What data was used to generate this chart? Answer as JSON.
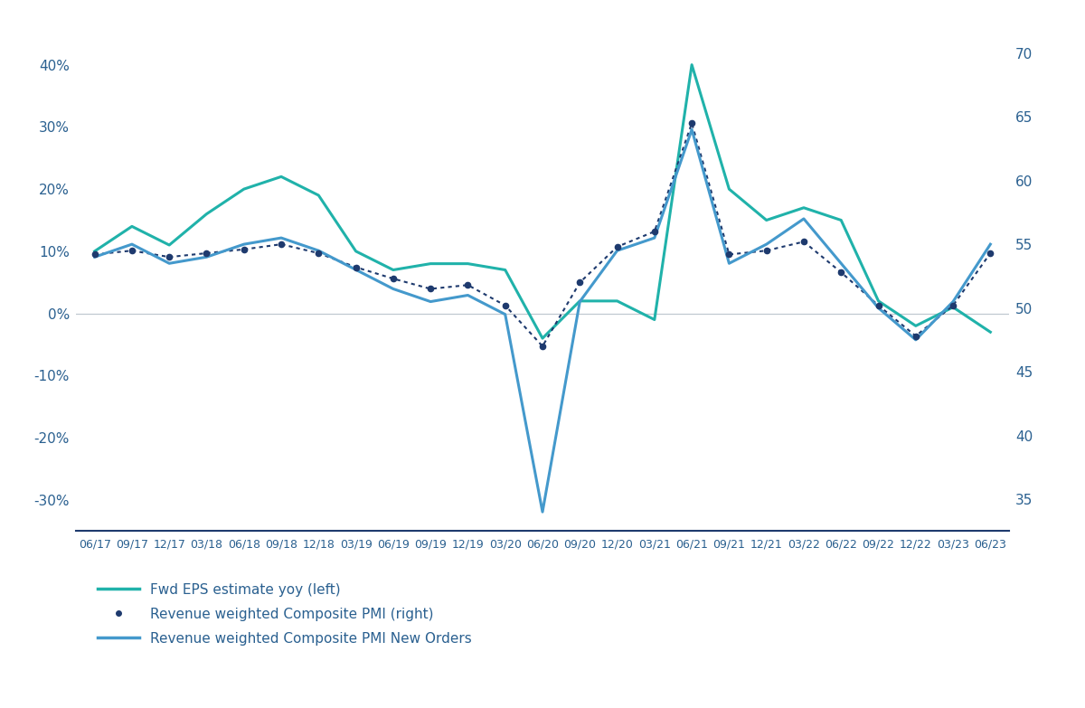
{
  "background_color": "#ffffff",
  "plot_bg_color": "#f0f5f5",
  "text_color": "#1a4a7a",
  "axis_label_color": "#2a6090",
  "x_labels": [
    "06/17",
    "09/17",
    "12/17",
    "03/18",
    "06/18",
    "09/18",
    "12/18",
    "03/19",
    "06/19",
    "09/19",
    "12/19",
    "03/20",
    "06/20",
    "09/20",
    "12/20",
    "03/21",
    "06/21",
    "09/21",
    "12/21",
    "03/22",
    "06/22",
    "09/22",
    "12/22",
    "03/23",
    "06/23"
  ],
  "fwd_eps": [
    10,
    14,
    11,
    16,
    20,
    22,
    19,
    10,
    7,
    8,
    8,
    7,
    -4,
    2,
    2,
    -1,
    40,
    20,
    15,
    17,
    15,
    2,
    -2,
    1,
    -3
  ],
  "composite_pmi": [
    54.2,
    54.5,
    54.0,
    54.3,
    54.6,
    55.0,
    54.3,
    53.2,
    52.3,
    51.5,
    51.8,
    50.2,
    47.0,
    52.0,
    54.8,
    56.0,
    64.5,
    54.2,
    54.5,
    55.2,
    52.8,
    50.2,
    47.8,
    50.2,
    54.3
  ],
  "pmi_new_orders": [
    54.0,
    55.0,
    53.5,
    54.0,
    55.0,
    55.5,
    54.5,
    53.0,
    51.5,
    50.5,
    51.0,
    49.5,
    34.0,
    50.5,
    54.5,
    55.5,
    64.0,
    53.5,
    55.0,
    57.0,
    53.5,
    50.0,
    47.5,
    50.5,
    55.0
  ],
  "left_ylim": [
    -35,
    47
  ],
  "right_ylim": [
    32.5,
    72.5
  ],
  "left_yticks": [
    -30,
    -20,
    -10,
    0,
    10,
    20,
    30,
    40
  ],
  "right_yticks": [
    35,
    40,
    45,
    50,
    55,
    60,
    65,
    70
  ],
  "fwd_eps_color": "#20b2aa",
  "composite_pmi_color": "#1e3a6e",
  "pmi_new_orders_color": "#4499cc",
  "zero_line_color": "#c0c8d0",
  "bottom_border_color": "#1e3a6e",
  "legend_labels": [
    "Fwd EPS estimate yoy (left)",
    "Revenue weighted Composite PMI (right)",
    "Revenue weighted Composite PMI New Orders"
  ]
}
